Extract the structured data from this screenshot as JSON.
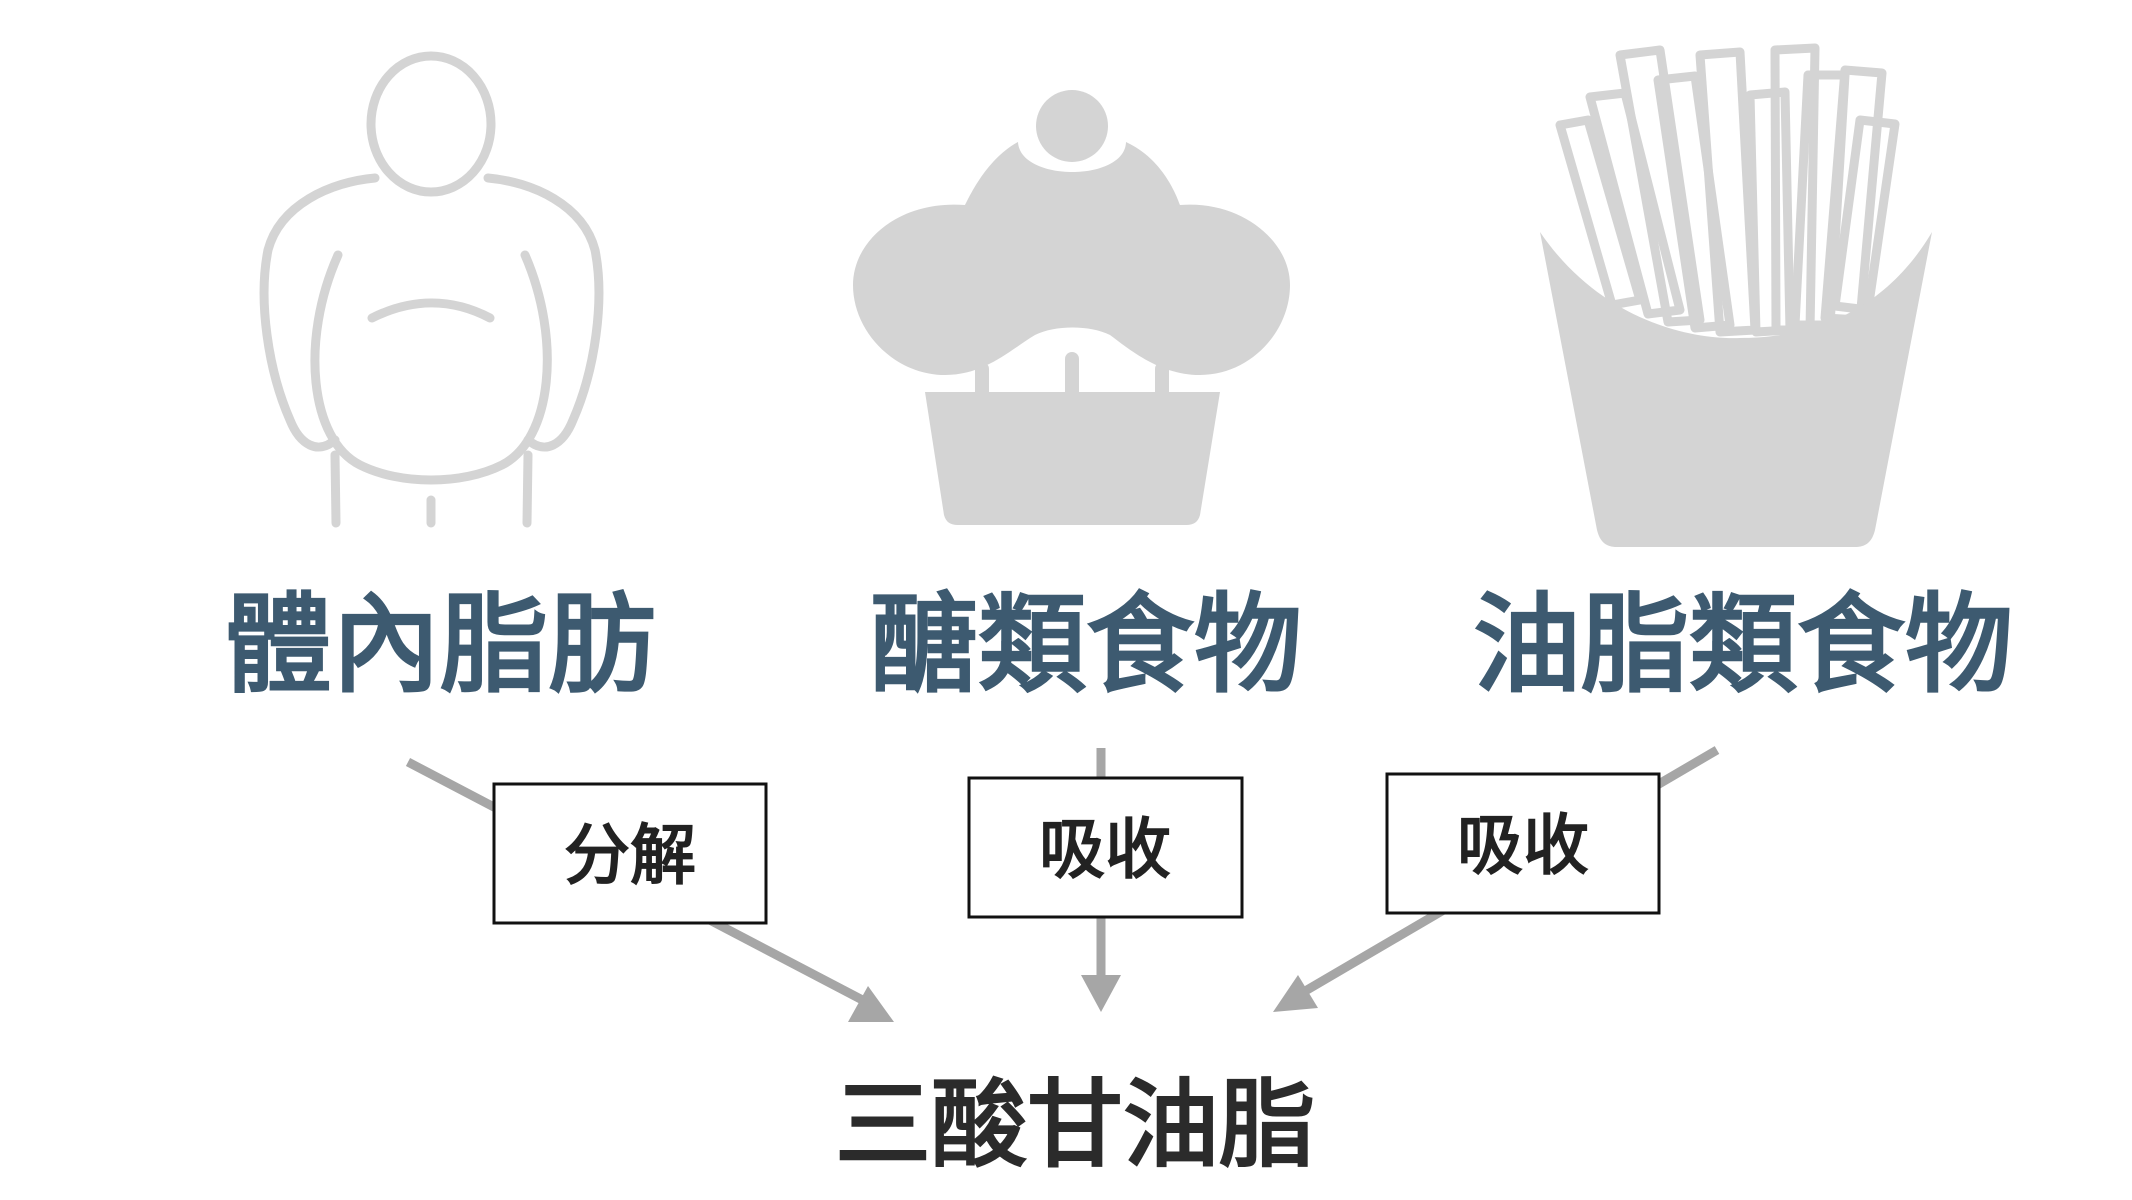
{
  "colors": {
    "source_label": "#3d5a70",
    "icon_fill": "#d4d4d4",
    "arrow": "#a6a6a6",
    "box_border": "#111111",
    "result_label": "#2b2b2b"
  },
  "sources": [
    {
      "label": "體內脂肪",
      "icon": "body-fat-person-icon"
    },
    {
      "label": "醣類食物",
      "icon": "cupcake-icon"
    },
    {
      "label": "油脂類食物",
      "icon": "french-fries-icon"
    }
  ],
  "processes": [
    {
      "label": "分解"
    },
    {
      "label": "吸收"
    },
    {
      "label": "吸收"
    }
  ],
  "result": {
    "label": "三酸甘油脂"
  }
}
